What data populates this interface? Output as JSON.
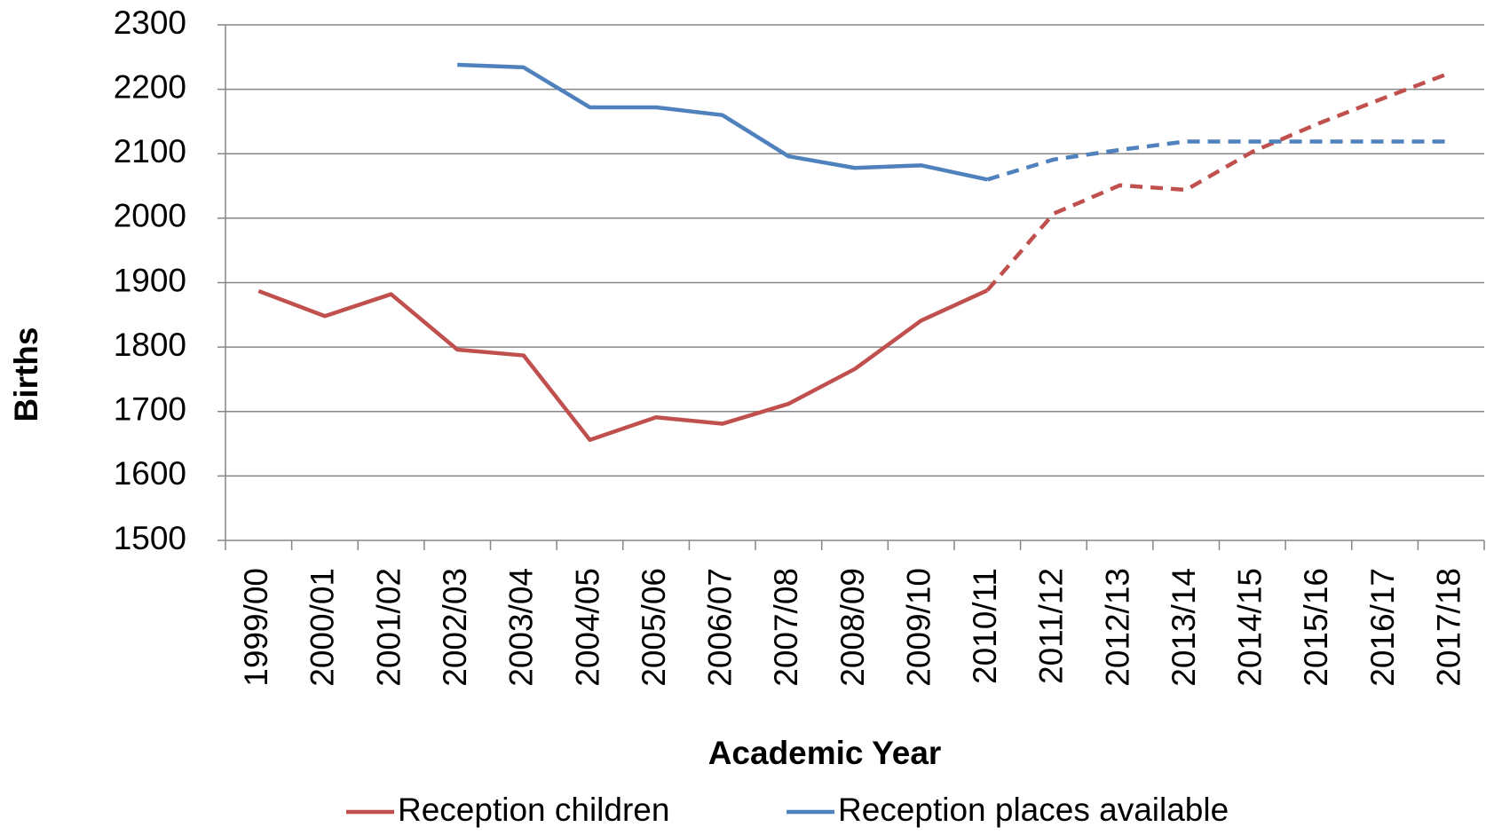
{
  "chart_data": {
    "type": "line",
    "x_label": "Academic Year",
    "y_label": "Births",
    "categories": [
      "1999/00",
      "2000/01",
      "2001/02",
      "2002/03",
      "2003/04",
      "2004/05",
      "2005/06",
      "2006/07",
      "2007/08",
      "2008/09",
      "2009/10",
      "2010/11",
      "2011/12",
      "2012/13",
      "2013/14",
      "2014/15",
      "2015/16",
      "2016/17",
      "2017/18"
    ],
    "series": [
      {
        "name": "Reception children",
        "color": "#c0504d",
        "dashed_from_index": 12,
        "values": [
          1887,
          1848,
          1882,
          1796,
          1787,
          1656,
          1691,
          1681,
          1712,
          1766,
          1841,
          1888,
          2007,
          2051,
          2044,
          2103,
          2147,
          2187,
          2226
        ]
      },
      {
        "name": "Reception places available",
        "color": "#4f81bd",
        "dashed_from_index": 12,
        "values": [
          null,
          null,
          null,
          2238,
          2234,
          2172,
          2172,
          2160,
          2096,
          2078,
          2082,
          2060,
          2091,
          2106,
          2119,
          2119,
          2119,
          2119,
          2119
        ]
      }
    ],
    "ylim": [
      1500,
      2300
    ],
    "yticks": [
      1500,
      1600,
      1700,
      1800,
      1900,
      2000,
      2100,
      2200,
      2300
    ],
    "grid": true,
    "legend": "bottom"
  }
}
